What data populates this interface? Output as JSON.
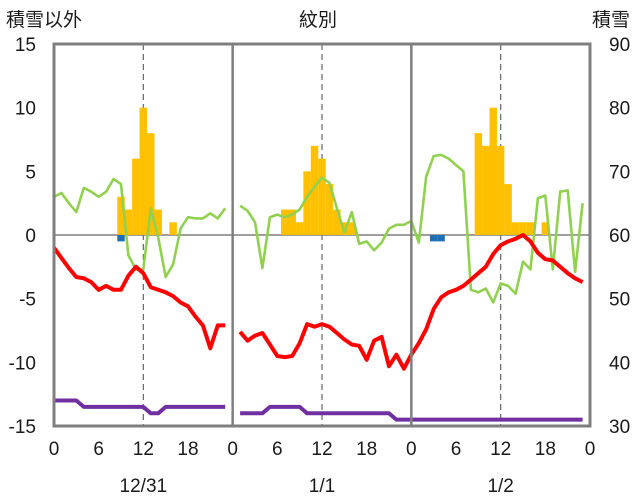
{
  "chart_data": {
    "type": "line",
    "left_title": "積雪以外",
    "center_title": "紋別",
    "right_title": "積雪",
    "y_left_range": [
      -15,
      15
    ],
    "y_left_ticks": [
      15,
      10,
      5,
      0,
      -5,
      -10,
      -15
    ],
    "y_right_range": [
      30,
      90
    ],
    "y_right_ticks": [
      90,
      80,
      70,
      60,
      50,
      40,
      30
    ],
    "x_range": [
      0,
      72
    ],
    "x_tick_labels": [
      "0",
      "6",
      "12",
      "18",
      "0",
      "6",
      "12",
      "18",
      "0",
      "6",
      "12",
      "18",
      "0"
    ],
    "x_tick_hours": [
      0,
      6,
      12,
      18,
      24,
      30,
      36,
      42,
      48,
      54,
      60,
      66,
      72
    ],
    "day_labels": [
      "12/31",
      "1/1",
      "1/2"
    ],
    "day_label_hours": [
      12,
      36,
      60
    ],
    "day_dividers": [
      24,
      48
    ],
    "noon_gridlines": [
      12,
      36,
      60
    ],
    "colors": {
      "precip_bar": "#ffc000",
      "blue_bar": "#1f6fb5",
      "temperature": "#ff0000",
      "green_line": "#92d050",
      "snow_depth": "#7030a0",
      "frame": "#7f7f7f"
    },
    "precip_bars": {
      "x": [
        9,
        10,
        11,
        12,
        13,
        14,
        16,
        31,
        32,
        33,
        34,
        35,
        36,
        37,
        38,
        39,
        40,
        57,
        58,
        59,
        60,
        61,
        62,
        63,
        64,
        66
      ],
      "values": [
        3,
        2,
        6,
        10,
        8,
        2,
        1,
        2,
        2,
        1,
        5,
        7,
        6,
        4,
        2,
        1,
        1,
        8,
        7,
        10,
        7,
        4,
        1,
        1,
        1,
        1
      ]
    },
    "blue_bars": {
      "x": [
        9,
        51,
        52
      ],
      "values": [
        -0.5,
        -0.5,
        -0.5
      ]
    },
    "temperature": {
      "hours": [
        0,
        1,
        2,
        3,
        4,
        5,
        6,
        7,
        8,
        9,
        10,
        11,
        12,
        13,
        14,
        15,
        16,
        17,
        18,
        19,
        20,
        21,
        22,
        23,
        null,
        25,
        26,
        27,
        28,
        29,
        30,
        31,
        32,
        33,
        34,
        35,
        36,
        37,
        38,
        39,
        40,
        41,
        42,
        43,
        44,
        45,
        46,
        47,
        48,
        49,
        50,
        51,
        52,
        53,
        54,
        55,
        56,
        57,
        58,
        59,
        60,
        61,
        62,
        63,
        64,
        65,
        66,
        67,
        68,
        69,
        70,
        71
      ],
      "values": [
        -1,
        -1.8,
        -2.6,
        -3.3,
        -3.4,
        -3.7,
        -4.3,
        -4,
        -4.3,
        -4.3,
        -3.2,
        -2.5,
        -3,
        -4.1,
        -4.3,
        -4.5,
        -4.8,
        -5.3,
        -5.6,
        -6.4,
        -7.1,
        -8.9,
        -7.1,
        -7.1,
        null,
        -7.6,
        -8.3,
        -7.9,
        -7.7,
        -8.6,
        -9.5,
        -9.6,
        -9.5,
        -8.5,
        -7,
        -7.2,
        -7,
        -7.2,
        -7.7,
        -8.2,
        -8.6,
        -8.7,
        -9.8,
        -8.3,
        -8,
        -10.3,
        -9.4,
        -10.5,
        -9.4,
        -8.5,
        -7.4,
        -5.8,
        -4.9,
        -4.5,
        -4.3,
        -4,
        -3.5,
        -3,
        -2.5,
        -1.5,
        -0.8,
        -0.5,
        -0.3,
        0,
        -0.5,
        -1.4,
        -1.9,
        -2,
        -2.5,
        -3,
        -3.4,
        -3.7
      ]
    },
    "green_line": {
      "hours": [
        0,
        1,
        2,
        3,
        4,
        5,
        6,
        7,
        8,
        9,
        10,
        11,
        12,
        13,
        14,
        15,
        16,
        17,
        18,
        19,
        20,
        21,
        22,
        23,
        null,
        25,
        26,
        27,
        28,
        29,
        30,
        31,
        32,
        33,
        34,
        35,
        36,
        37,
        38,
        39,
        40,
        41,
        42,
        43,
        44,
        45,
        46,
        47,
        48,
        49,
        50,
        51,
        52,
        53,
        54,
        55,
        56,
        57,
        58,
        59,
        60,
        61,
        62,
        63,
        64,
        65,
        66,
        67,
        68,
        69,
        70,
        71
      ],
      "values": [
        3,
        3.3,
        2.5,
        1.8,
        3.7,
        3.4,
        3,
        3.4,
        4.4,
        4,
        -1.6,
        -2.7,
        -2.7,
        2.1,
        -0.2,
        -3.3,
        -2.3,
        0.5,
        1.4,
        1.3,
        1.3,
        1.7,
        1.3,
        2.1,
        null,
        2.3,
        1.9,
        1,
        -2.6,
        1.4,
        1.6,
        1.4,
        1.6,
        2,
        3,
        3.8,
        4.5,
        4.1,
        2.1,
        0.2,
        1.8,
        -0.7,
        -0.5,
        -1.2,
        -0.6,
        0.5,
        0.8,
        0.8,
        1.1,
        -0.6,
        4.6,
        6.2,
        6.3,
        6,
        5.5,
        5,
        -4.3,
        -4.5,
        -4.2,
        -5.3,
        -3.8,
        -4,
        -4.6,
        -2.1,
        -2.7,
        2.9,
        3.1,
        -2.7,
        3.4,
        3.5,
        -2.9,
        2.5
      ]
    },
    "snow_depth": {
      "hours": [
        0,
        1,
        2,
        3,
        4,
        5,
        6,
        7,
        8,
        9,
        10,
        11,
        12,
        13,
        14,
        15,
        16,
        17,
        18,
        19,
        20,
        21,
        22,
        23,
        null,
        25,
        26,
        27,
        28,
        29,
        30,
        31,
        32,
        33,
        34,
        35,
        36,
        37,
        38,
        39,
        40,
        41,
        42,
        43,
        44,
        45,
        46,
        47,
        48,
        49,
        50,
        51,
        52,
        53,
        54,
        55,
        56,
        57,
        58,
        59,
        60,
        61,
        62,
        63,
        64,
        65,
        66,
        67,
        68,
        69,
        70,
        71
      ],
      "values": [
        34,
        34,
        34,
        34,
        33,
        33,
        33,
        33,
        33,
        33,
        33,
        33,
        33,
        32,
        32,
        33,
        33,
        33,
        33,
        33,
        33,
        33,
        33,
        33,
        null,
        32,
        32,
        32,
        32,
        33,
        33,
        33,
        33,
        33,
        32,
        32,
        32,
        32,
        32,
        32,
        32,
        32,
        32,
        32,
        32,
        32,
        31,
        31,
        31,
        31,
        31,
        31,
        31,
        31,
        31,
        31,
        31,
        31,
        31,
        31,
        31,
        31,
        31,
        31,
        31,
        31,
        31,
        31,
        31,
        31,
        31,
        31
      ]
    }
  }
}
